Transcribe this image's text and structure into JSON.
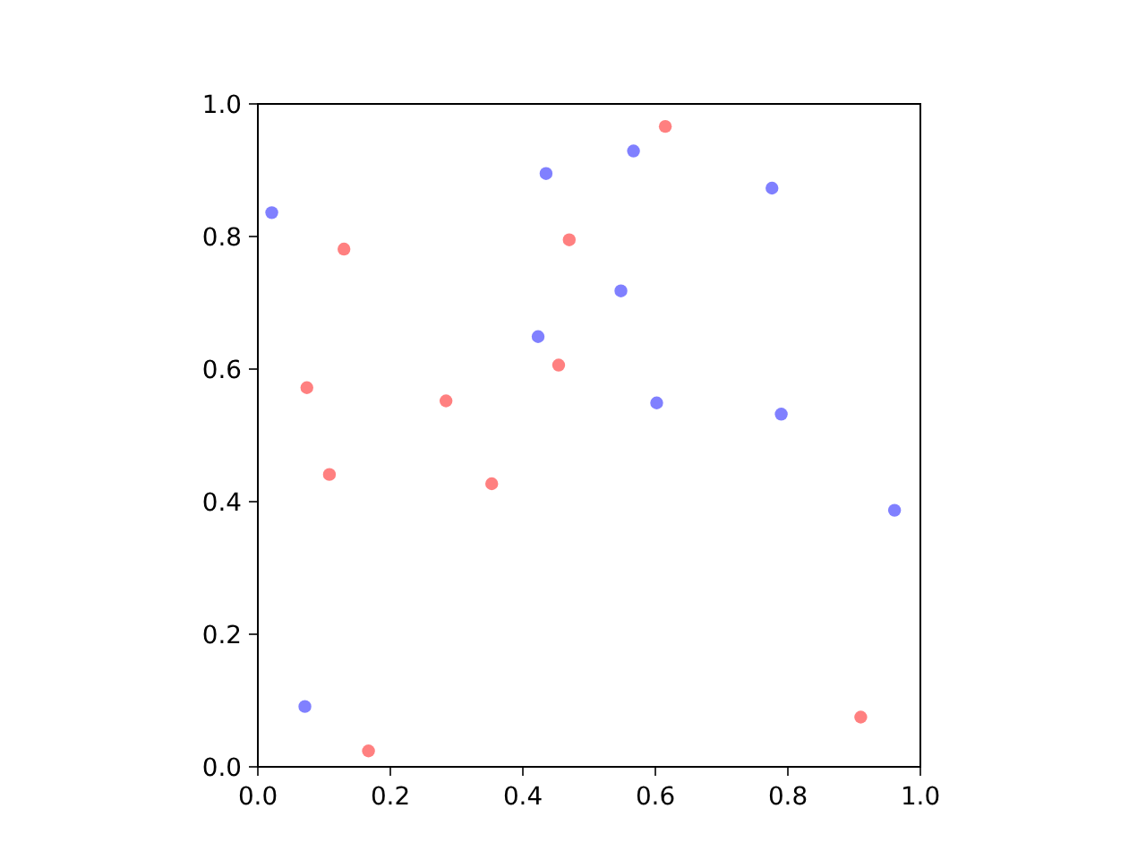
{
  "chart_data": {
    "type": "scatter",
    "xlim": [
      0,
      1
    ],
    "ylim": [
      0,
      1
    ],
    "xticks": [
      {
        "value": 0,
        "label": "0.0"
      },
      {
        "value": 0.2,
        "label": "0.2"
      },
      {
        "value": 0.4,
        "label": "0.4"
      },
      {
        "value": 0.6,
        "label": "0.6"
      },
      {
        "value": 0.8,
        "label": "0.8"
      },
      {
        "value": 1,
        "label": "1.0"
      }
    ],
    "yticks": [
      {
        "value": 0,
        "label": "0.0"
      },
      {
        "value": 0.2,
        "label": "0.2"
      },
      {
        "value": 0.4,
        "label": "0.4"
      },
      {
        "value": 0.6,
        "label": "0.6"
      },
      {
        "value": 0.8,
        "label": "0.8"
      },
      {
        "value": 1,
        "label": "1.0"
      }
    ],
    "marker": "circle",
    "series": [
      {
        "color": "#8080ff",
        "x": [
          0.021,
          0.435,
          0.567,
          0.776,
          0.548,
          0.423,
          0.602,
          0.79,
          0.961,
          0.071
        ],
        "values": [
          0.836,
          0.895,
          0.929,
          0.873,
          0.718,
          0.649,
          0.549,
          0.532,
          0.387,
          0.091
        ]
      },
      {
        "color": "#ff8080",
        "x": [
          0.615,
          0.13,
          0.47,
          0.074,
          0.284,
          0.454,
          0.108,
          0.353,
          0.167,
          0.91
        ],
        "values": [
          0.966,
          0.781,
          0.795,
          0.572,
          0.552,
          0.606,
          0.441,
          0.427,
          0.024,
          0.075
        ]
      }
    ]
  }
}
